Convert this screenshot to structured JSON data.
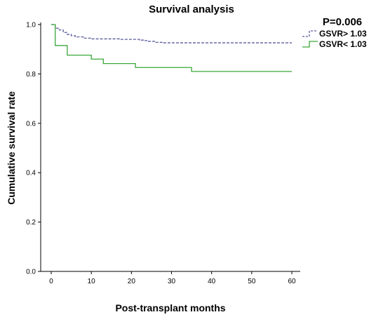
{
  "chart_data": {
    "type": "line",
    "title": "Survival analysis",
    "xlabel": "Post-transplant months",
    "ylabel": "Cumulative survival rate",
    "xlim": [
      0,
      60
    ],
    "ylim": [
      0,
      1.0
    ],
    "x_ticks": [
      "0",
      "10",
      "20",
      "30",
      "40",
      "50",
      "60"
    ],
    "y_ticks": [
      "0.0",
      "0.2",
      "0.4",
      "0.6",
      "0.8",
      "1.0"
    ],
    "annotation": "P=0.006",
    "grid": false,
    "legend_position": "top-right",
    "series": [
      {
        "name": "GSVR> 1.03",
        "style": "dashed",
        "color": "#5a5a9e",
        "steps": [
          [
            0,
            1.0
          ],
          [
            1,
            0.985
          ],
          [
            2,
            0.978
          ],
          [
            3,
            0.968
          ],
          [
            4,
            0.96
          ],
          [
            5,
            0.955
          ],
          [
            6,
            0.95
          ],
          [
            8,
            0.945
          ],
          [
            10,
            0.942
          ],
          [
            17,
            0.94
          ],
          [
            22,
            0.937
          ],
          [
            23,
            0.935
          ],
          [
            24,
            0.932
          ],
          [
            26,
            0.928
          ],
          [
            28,
            0.926
          ],
          [
            60,
            0.926
          ]
        ]
      },
      {
        "name": "GSVR< 1.03",
        "style": "solid",
        "color": "#3aa63a",
        "steps": [
          [
            0,
            1.0
          ],
          [
            1,
            0.915
          ],
          [
            4,
            0.876
          ],
          [
            10,
            0.86
          ],
          [
            13,
            0.842
          ],
          [
            21,
            0.826
          ],
          [
            35,
            0.81
          ],
          [
            60,
            0.81
          ]
        ]
      }
    ]
  }
}
